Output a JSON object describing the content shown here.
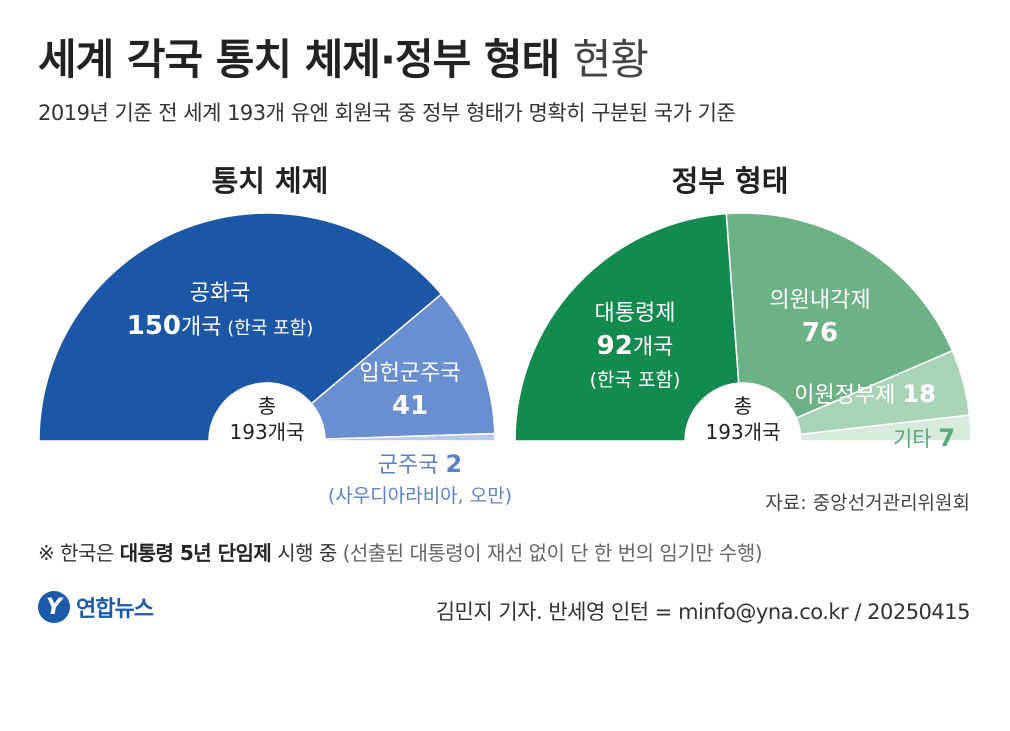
{
  "title": "세계 각국 통치 체제·정부 형태",
  "title_suffix": "현황",
  "subtitle": "2019년 기준 전 세계 193개 유엔 회원국 중 정부 형태가 명확히 구분된 국가 기준",
  "center_label_line1": "총",
  "center_label_line2": "193개국",
  "source": "자료: 중앙선거관리위원회",
  "note": {
    "mark": "※",
    "prefix": "한국은",
    "bold": "대통령 5년 단임제",
    "mid": "시행 중",
    "muted": "(선출된 대통령이 재선 없이 단 한 번의 임기만 수행)"
  },
  "logo": {
    "mark": "Y",
    "text": "연합뉴스"
  },
  "credit": "김민지 기자. 반세영 인턴 = minfo@yna.co.kr / 20250415",
  "chart_data": [
    {
      "type": "pie",
      "subtype": "half-donut",
      "title": "통치 체제",
      "total": 193,
      "slices": [
        {
          "name": "공화국",
          "value": 150,
          "value_text": "150",
          "unit": "개국",
          "note": "(한국 포함)",
          "color": "#1b57a5",
          "label_color": "#ffffff"
        },
        {
          "name": "입헌군주국",
          "value": 41,
          "value_text": "41",
          "unit": "",
          "note": "",
          "color": "#6a8fd0",
          "label_color": "#ffffff"
        },
        {
          "name": "군주국",
          "value": 2,
          "value_text": "2",
          "unit": "",
          "note": "(사우디아라비아, 오만)",
          "color": "#b9c9ea",
          "label_color": "#5b82c9"
        }
      ]
    },
    {
      "type": "pie",
      "subtype": "half-donut",
      "title": "정부 형태",
      "total": 193,
      "slices": [
        {
          "name": "대통령제",
          "value": 92,
          "value_text": "92",
          "unit": "개국",
          "note": "(한국 포함)",
          "color": "#138a4e",
          "label_color": "#ffffff"
        },
        {
          "name": "의원내각제",
          "value": 76,
          "value_text": "76",
          "unit": "",
          "note": "",
          "color": "#6cb285",
          "label_color": "#ffffff"
        },
        {
          "name": "이원정부제",
          "value": 18,
          "value_text": "18",
          "unit": "",
          "note": "",
          "color": "#a8d4b5",
          "label_color": "#ffffff"
        },
        {
          "name": "기타",
          "value": 7,
          "value_text": "7",
          "unit": "",
          "note": "",
          "color": "#d6ebdc",
          "label_color": "#58a978"
        }
      ]
    }
  ]
}
